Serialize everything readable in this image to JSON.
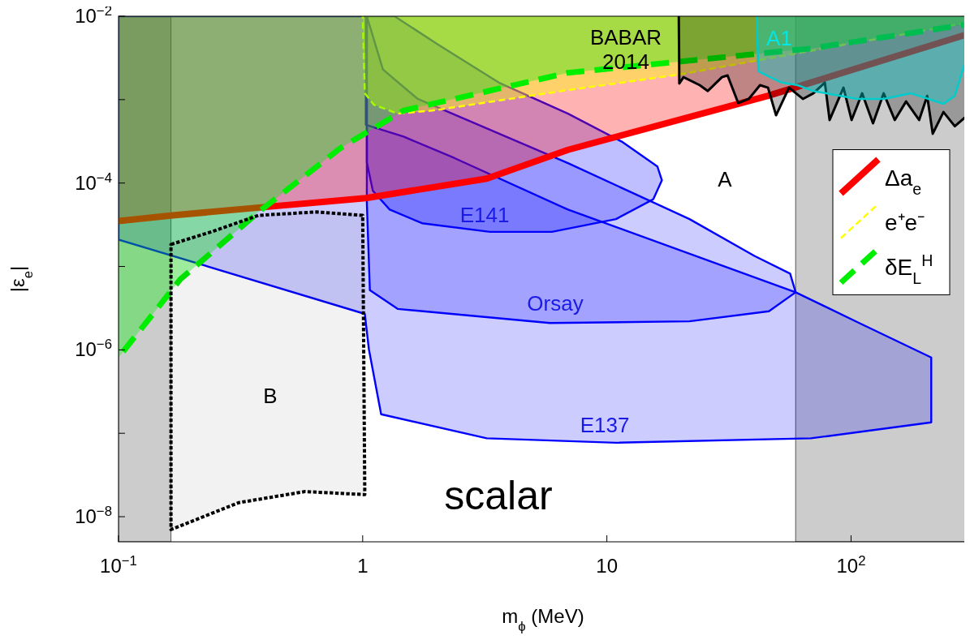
{
  "chart_data": {
    "type": "area",
    "title": "scalar",
    "xlabel": "m$_{ϕ}$ (MeV)",
    "ylabel": "|ε$_{e}$|",
    "log": "xy",
    "grid": false,
    "legend": "right",
    "xlim": [
      0.1,
      300
    ],
    "ylim": [
      5e-09,
      0.01
    ],
    "xticks": [
      {
        "value": 0.1,
        "label": "10$^{−1}$"
      },
      1,
      10,
      {
        "value": 100,
        "label": "10$^{2}$"
      }
    ],
    "yticks": [
      {
        "value": 0.01,
        "label": "10$^{−2}$"
      },
      {
        "value": 0.001,
        "label": null
      },
      {
        "value": 0.0001,
        "label": "10$^{−4}$"
      },
      {
        "value": 1e-05,
        "label": null
      },
      {
        "value": 1e-06,
        "label": "10$^{−6}$"
      },
      {
        "value": 1e-07,
        "label": null
      },
      {
        "value": 1e-08,
        "label": "10$^{−8}$"
      }
    ],
    "bands": [
      {
        "axis": "x",
        "from": 0.1,
        "to": 0.164,
        "color": "#999999"
      },
      {
        "axis": "x",
        "from": 59.3,
        "to": 300,
        "color": "#999999"
      }
    ],
    "series": [
      {
        "color": "#0000ff",
        "x": [
          0.1,
          0.1,
          1.02,
          1.06,
          1.19,
          3.22,
          10.9,
          68.5,
          213,
          213,
          108,
          59.3,
          6.93,
          2.37,
          1.47,
          1.03,
          1.03
        ],
        "values": [
          0.01,
          2.1e-05,
          2.7e-06,
          1.02e-06,
          1.69e-07,
          8.7e-08,
          7.7e-08,
          8.7e-08,
          1.35e-07,
          8.1e-07,
          2.1e-06,
          4.9e-06,
          4.8e-05,
          0.0002,
          0.00036,
          0.0005,
          0.01
        ]
      },
      {
        "color": "#0000ff",
        "x": [
          1.04,
          1.21,
          1.68,
          6.93,
          21.8,
          40.2,
          56.3,
          59.3,
          46.1,
          21.8,
          5.85,
          1.39,
          1.07,
          1.04
        ],
        "values": [
          0.01,
          0.0023,
          0.00102,
          0.000173,
          3.7e-05,
          1.34e-05,
          8.2e-06,
          4.9e-06,
          2.9e-06,
          2.2e-06,
          2.1e-06,
          3.1e-06,
          5.2e-06,
          5.8e-05
        ]
      },
      {
        "color": "#0000ff",
        "x": [
          1.04,
          1.04,
          1.1,
          1.29,
          1.75,
          3.32,
          5.95,
          10.9,
          15.5,
          16.8,
          16.1,
          11.6,
          6.93,
          3.61,
          2.03,
          1.35
        ],
        "values": [
          0.01,
          0.000177,
          8.1e-05,
          4.8e-05,
          3.3e-05,
          2.6e-05,
          2.6e-05,
          3.7e-05,
          6.4e-05,
          0.000108,
          0.000158,
          0.00031,
          0.00068,
          0.0016,
          0.0046,
          0.01
        ]
      },
      {
        "name": "Δa$_{e}$",
        "color": "#ff0000",
        "line_style": "solid",
        "x": [
          0.1,
          0.167,
          0.41,
          1.03,
          3.22,
          6.93,
          45.7,
          300
        ],
        "values": [
          3.5e-05,
          4.1e-05,
          5.2e-05,
          6.6e-05,
          0.000113,
          0.00025,
          0.00111,
          0.0061
        ]
      },
      {
        "name": "e⁺e⁻",
        "color": "#ffff00",
        "line_style": "dashed",
        "x": [
          1.0,
          1.02,
          1.11,
          1.39,
          1.93,
          6.93,
          19.8,
          300
        ],
        "values": [
          0.01,
          0.00119,
          0.00087,
          0.00068,
          0.00074,
          0.0013,
          0.002,
          0.0084
        ]
      },
      {
        "name": "δE$_{L}$$^{H}$",
        "color": "#00ee00",
        "line_style": "dashed",
        "x": [
          0.1,
          0.179,
          0.375,
          0.807,
          1.47,
          6.93,
          68.5,
          300
        ],
        "values": [
          8.1e-07,
          7e-06,
          4.5e-05,
          0.00026,
          0.00074,
          0.0021,
          0.0041,
          0.008
        ]
      },
      {
        "color": "#000000",
        "line_style": "solid",
        "x": [
          19.7,
          19.8,
          20.6,
          24.0,
          25.9,
          29.6,
          31.2,
          34.5,
          38.1,
          42.4,
          45.7,
          49.3,
          55.7,
          63.5,
          70.0,
          78.1,
          81.7,
          93.1,
          100.5,
          111,
          123,
          136,
          151,
          168,
          190,
          205,
          216,
          239,
          266,
          300
        ],
        "values": [
          0.01,
          0.00156,
          0.00186,
          0.00149,
          0.00127,
          0.00186,
          0.00195,
          0.00091,
          0.00102,
          0.00149,
          0.00139,
          0.00065,
          0.00139,
          0.00102,
          0.00119,
          0.0016,
          0.00057,
          0.00139,
          0.00057,
          0.00119,
          0.00052,
          0.00119,
          0.00057,
          0.00095,
          0.00057,
          0.00111,
          0.00039,
          0.00071,
          0.00048,
          0.00065
        ]
      },
      {
        "color": "#00cccc",
        "line_style": "solid",
        "x": [
          41.1,
          41.7,
          44.3,
          51.9,
          60.4,
          70.0,
          106,
          136,
          176,
          239,
          266,
          292
        ],
        "values": [
          0.01,
          0.0022,
          0.002,
          0.0016,
          0.00149,
          0.00127,
          0.00102,
          0.00102,
          0.00119,
          0.00089,
          0.00111,
          0.0027
        ]
      },
      {
        "color": "#000000",
        "line_style": "dotted",
        "x": [
          0.164,
          0.24,
          0.375,
          0.646,
          1.0,
          1.02,
          0.58,
          0.31,
          0.164,
          0.164
        ],
        "values": [
          1.84e-05,
          2.6e-05,
          4.1e-05,
          4.5e-05,
          4.1e-05,
          1.84e-08,
          2e-08,
          1.47e-08,
          7e-09,
          1.84e-05
        ]
      }
    ],
    "annotations": [
      "BABAR\n2014",
      "A1",
      "A",
      "E141",
      "Orsay",
      "E137",
      "B"
    ]
  }
}
